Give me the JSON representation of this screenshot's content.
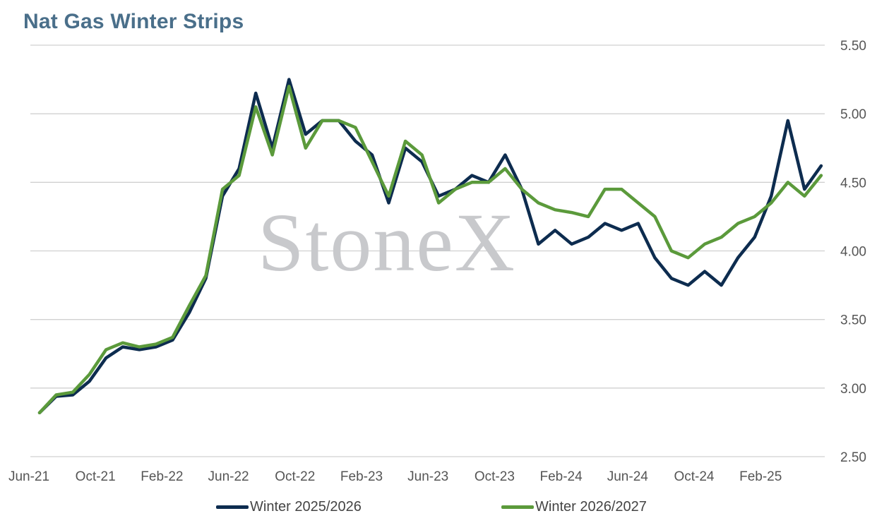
{
  "chart_data": {
    "type": "line",
    "title": "Nat Gas Winter Strips",
    "xlabel": "",
    "ylabel": "",
    "ylim": [
      2.5,
      5.5
    ],
    "yticks": [
      "5.50",
      "5.00",
      "4.50",
      "4.00",
      "3.50",
      "3.00",
      "2.50"
    ],
    "xticks": [
      "Jun-21",
      "Oct-21",
      "Feb-22",
      "Jun-22",
      "Oct-22",
      "Feb-23",
      "Jun-23",
      "Oct-23",
      "Feb-24",
      "Jun-24",
      "Oct-24",
      "Feb-25"
    ],
    "grid": true,
    "legend_position": "bottom",
    "watermark": "StoneX",
    "x": [
      "2021-06-01",
      "2021-07-01",
      "2021-08-01",
      "2021-09-01",
      "2021-10-01",
      "2021-11-01",
      "2021-12-01",
      "2022-01-01",
      "2022-02-01",
      "2022-03-01",
      "2022-04-01",
      "2022-05-01",
      "2022-06-01",
      "2022-07-01",
      "2022-08-01",
      "2022-09-01",
      "2022-10-01",
      "2022-11-01",
      "2022-12-01",
      "2023-01-01",
      "2023-02-01",
      "2023-03-01",
      "2023-04-01",
      "2023-05-01",
      "2023-06-01",
      "2023-07-01",
      "2023-08-01",
      "2023-09-01",
      "2023-10-01",
      "2023-11-01",
      "2023-12-01",
      "2024-01-01",
      "2024-02-01",
      "2024-03-01",
      "2024-04-01",
      "2024-05-01",
      "2024-06-01",
      "2024-07-01",
      "2024-08-01",
      "2024-09-01",
      "2024-10-01",
      "2024-11-01",
      "2024-12-01",
      "2025-01-01",
      "2025-02-01",
      "2025-03-01",
      "2025-04-01",
      "2025-05-01"
    ],
    "series": [
      {
        "name": "Winter 2025/2026",
        "color": "#0d2c4f",
        "values": [
          2.82,
          2.94,
          2.95,
          3.05,
          3.22,
          3.3,
          3.28,
          3.3,
          3.35,
          3.55,
          3.8,
          4.4,
          4.6,
          5.15,
          4.75,
          5.25,
          4.85,
          4.95,
          4.95,
          4.8,
          4.7,
          4.35,
          4.75,
          4.65,
          4.4,
          4.45,
          4.55,
          4.5,
          4.7,
          4.45,
          4.05,
          4.15,
          4.05,
          4.1,
          4.2,
          4.15,
          4.2,
          3.95,
          3.8,
          3.75,
          3.85,
          3.75,
          3.95,
          4.1,
          4.4,
          4.95,
          4.45,
          4.62
        ]
      },
      {
        "name": "Winter 2026/2027",
        "color": "#5b9a3b",
        "values": [
          2.82,
          2.95,
          2.97,
          3.1,
          3.28,
          3.33,
          3.3,
          3.32,
          3.37,
          3.6,
          3.82,
          4.45,
          4.55,
          5.05,
          4.7,
          5.2,
          4.75,
          4.95,
          4.95,
          4.9,
          4.65,
          4.4,
          4.8,
          4.7,
          4.35,
          4.45,
          4.5,
          4.5,
          4.6,
          4.45,
          4.35,
          4.3,
          4.28,
          4.25,
          4.45,
          4.45,
          4.35,
          4.25,
          4.0,
          3.95,
          4.05,
          4.1,
          4.2,
          4.25,
          4.35,
          4.5,
          4.4,
          4.55
        ]
      }
    ]
  }
}
